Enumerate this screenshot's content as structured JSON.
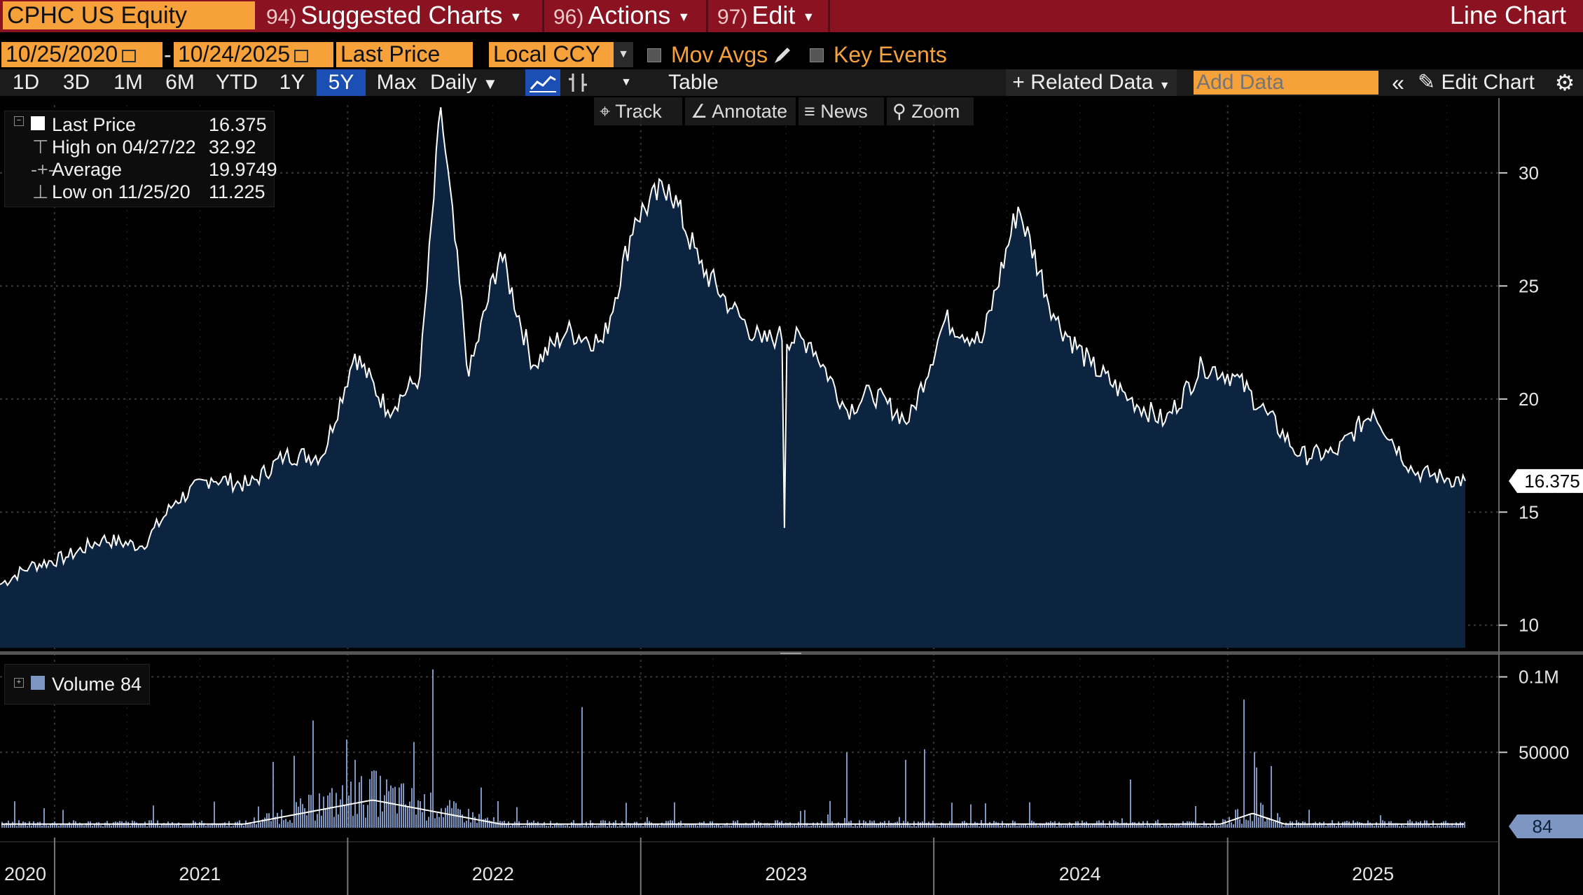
{
  "header": {
    "ticker": "CPHC US Equity",
    "menus": [
      {
        "num": "94)",
        "label": "Suggested Charts"
      },
      {
        "num": "96)",
        "label": "Actions"
      },
      {
        "num": "97)",
        "label": "Edit"
      }
    ],
    "chart_type": "Line Chart"
  },
  "controls": {
    "start_date": "10/25/2020",
    "date_sep": "-",
    "end_date": "10/24/2025",
    "field": "Last Price",
    "currency": "Local CCY",
    "mov_avgs": "Mov Avgs",
    "key_events": "Key Events",
    "periods": [
      "1D",
      "3D",
      "1M",
      "6M",
      "YTD",
      "1Y",
      "5Y",
      "Max"
    ],
    "selected_period": "5Y",
    "frequency": "Daily",
    "table": "Table",
    "related_data": "Related Data",
    "add_data_placeholder": "Add Data",
    "edit_chart": "Edit Chart"
  },
  "toolbar": {
    "track": "Track",
    "annotate": "Annotate",
    "news": "News",
    "zoom": "Zoom"
  },
  "price_legend": {
    "rows": [
      {
        "label": "Last Price",
        "value": "16.375"
      },
      {
        "label": "High on 04/27/22",
        "value": "32.92"
      },
      {
        "label": "Average",
        "value": "19.9749"
      },
      {
        "label": "Low on 11/25/20",
        "value": "11.225"
      }
    ]
  },
  "volume_legend": {
    "label": "Volume",
    "value": "84"
  },
  "colors": {
    "area_fill": "#0d2440",
    "price_line": "#ffffff",
    "volume_bar": "#7d97c2",
    "accent_orange": "#f6a13a",
    "title_red": "#8b1220"
  },
  "chart_data": [
    {
      "type": "area",
      "series": [
        {
          "name": "Last Price"
        }
      ],
      "x": [
        "2020-10-25",
        "2020-12-01",
        "2021-01-15",
        "2021-03-01",
        "2021-04-20",
        "2021-06-01",
        "2021-07-15",
        "2021-09-01",
        "2021-10-15",
        "2021-12-01",
        "2022-01-10",
        "2022-02-20",
        "2022-04-01",
        "2022-04-27",
        "2022-06-01",
        "2022-07-10",
        "2022-08-20",
        "2022-10-01",
        "2022-11-15",
        "2022-12-25",
        "2023-02-05",
        "2023-03-15",
        "2023-04-25",
        "2023-06-01",
        "2023-06-20",
        "2023-08-01",
        "2023-09-15",
        "2023-10-15",
        "2023-12-01",
        "2024-01-15",
        "2024-03-01",
        "2024-04-15",
        "2024-06-01",
        "2024-07-15",
        "2024-09-01",
        "2024-10-15",
        "2024-12-01",
        "2025-01-10",
        "2025-02-20",
        "2025-04-01",
        "2025-05-15",
        "2025-07-01",
        "2025-08-20",
        "2025-10-01",
        "2025-10-24"
      ],
      "values": [
        11.8,
        12.6,
        13.0,
        13.8,
        13.5,
        15.5,
        16.5,
        16.2,
        17.5,
        17.5,
        22.0,
        19.5,
        21.0,
        32.9,
        21.0,
        26.5,
        21.5,
        23.0,
        22.5,
        28.0,
        29.5,
        26.0,
        24.0,
        22.5,
        22.8,
        22.5,
        19.5,
        20.3,
        19.0,
        23.5,
        22.5,
        28.5,
        23.5,
        21.5,
        20.0,
        19.0,
        21.5,
        21.0,
        19.3,
        17.5,
        17.6,
        19.5,
        16.8,
        16.5,
        16.375
      ],
      "ylim": [
        9,
        33
      ],
      "yticks": [
        10,
        15,
        20,
        25,
        30
      ],
      "last_value_label": "16.375"
    },
    {
      "type": "bar",
      "series": [
        {
          "name": "Volume"
        }
      ],
      "x_years": [
        "2020",
        "2021",
        "2022",
        "2023",
        "2024",
        "2025"
      ],
      "yticks": [
        {
          "value": 50000,
          "label": "50000"
        },
        {
          "value": 100000,
          "label": "0.1M"
        }
      ],
      "ylim": [
        0,
        110000
      ],
      "last_value_label": "84",
      "spikes": [
        {
          "date": "2022-01-10",
          "value": 45000
        },
        {
          "date": "2022-02-01",
          "value": 38000
        },
        {
          "date": "2022-04-15",
          "value": 105000
        },
        {
          "date": "2022-10-20",
          "value": 80000
        },
        {
          "date": "2023-09-15",
          "value": 50000
        },
        {
          "date": "2023-11-25",
          "value": 45000
        },
        {
          "date": "2023-12-20",
          "value": 52000
        },
        {
          "date": "2024-09-01",
          "value": 32000
        },
        {
          "date": "2025-01-20",
          "value": 85000
        },
        {
          "date": "2025-02-05",
          "value": 40000
        }
      ]
    }
  ]
}
